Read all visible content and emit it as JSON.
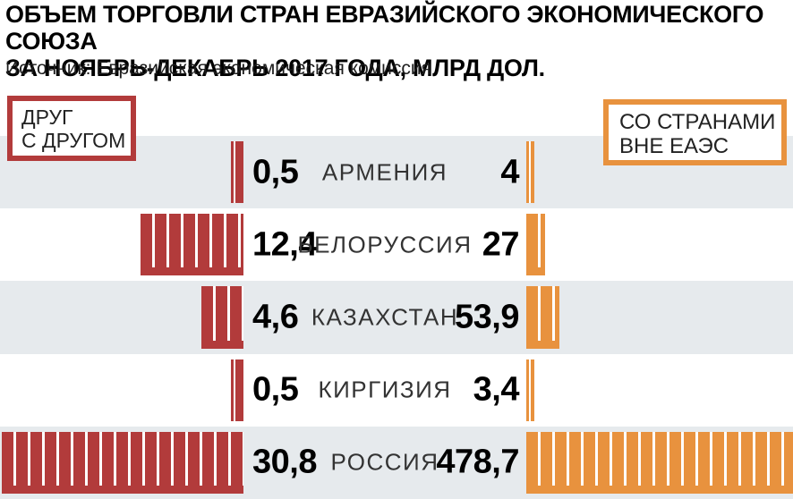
{
  "header": {
    "title_line1": "ОБЪЕМ ТОРГОВЛИ СТРАН ЕВРАЗИЙСКОГО ЭКОНОМИЧЕСКОГО СОЮЗА",
    "title_line2": "ЗА НОЯБРЬ-ДЕКАБРЬ 2017 ГОДА, МЛРД ДОЛ.",
    "source": "Источник: Евразийская экономическая комиссия"
  },
  "legend": {
    "internal": {
      "line1": "ДРУГ",
      "line2": "С ДРУГОМ",
      "color": "#b23b3b"
    },
    "external": {
      "line1": "СО СТРАНАМИ",
      "line2": "ВНЕ ЕАЭС",
      "color": "#e8923e"
    }
  },
  "chart_data": {
    "type": "bar",
    "orientation": "horizontal_diverging",
    "title": "Объем торговли стран Евразийского экономического союза за ноябрь-декабрь 2017 года",
    "unit": "млрд дол.",
    "categories": [
      "АРМЕНИЯ",
      "БЕЛОРУССИЯ",
      "КАЗАХСТАН",
      "КИРГИЗИЯ",
      "РОССИЯ"
    ],
    "series": [
      {
        "name": "ДРУГ С ДРУГОМ",
        "color": "#b23b3b",
        "direction": "left",
        "values": [
          0.5,
          12.4,
          4.6,
          0.5,
          30.8
        ],
        "labels": [
          "0,5",
          "12,4",
          "4,6",
          "0,5",
          "30,8"
        ]
      },
      {
        "name": "СО СТРАНАМИ ВНЕ ЕАЭС",
        "color": "#e8923e",
        "direction": "right",
        "values": [
          4,
          27,
          53.9,
          3.4,
          478.7
        ],
        "labels": [
          "4",
          "27",
          "53,9",
          "3,4",
          "478,7"
        ]
      }
    ],
    "row_background_colors": [
      "#e6eaed",
      "#ffffff"
    ],
    "legend_position": "top-left-and-top-right",
    "grid": false
  }
}
